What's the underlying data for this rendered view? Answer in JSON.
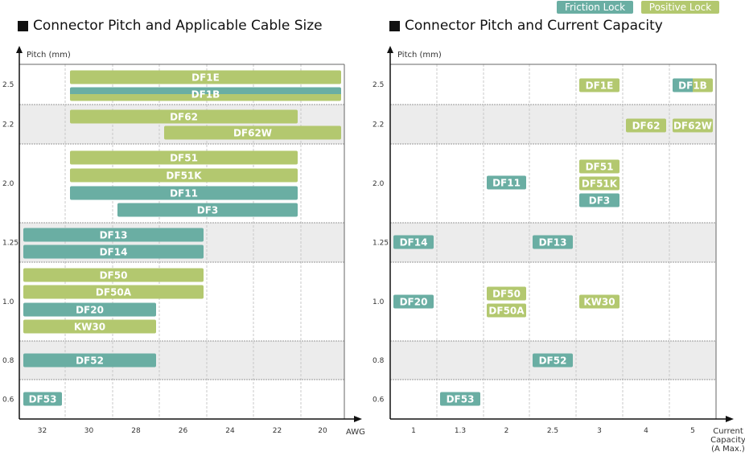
{
  "legend": [
    {
      "label": "Friction Lock",
      "color": "#6aaea3"
    },
    {
      "label": "Positive Lock",
      "color": "#b3c86f"
    }
  ],
  "chart_data": [
    {
      "type": "bar",
      "title": "Connector Pitch and Applicable Cable Size",
      "ylabel": "Pitch (mm)",
      "xlabel": "AWG",
      "x_ticks": [
        "32",
        "30",
        "28",
        "26",
        "24",
        "22",
        "20"
      ],
      "y_categories": [
        "2.5",
        "2.2",
        "2.0",
        "1.25",
        "1.0",
        "0.8",
        "0.6"
      ],
      "grid": true,
      "bars": [
        {
          "label": "DF1E",
          "pitch": "2.5",
          "awg_from": 30,
          "awg_to": 20,
          "lock": "positive"
        },
        {
          "label": "DF1B",
          "pitch": "2.5",
          "awg_from": 30,
          "awg_to": 20,
          "lock": "both"
        },
        {
          "label": "DF62",
          "pitch": "2.2",
          "awg_from": 30,
          "awg_to": 22,
          "lock": "positive"
        },
        {
          "label": "DF62W",
          "pitch": "2.2",
          "awg_from": 26,
          "awg_to": 20,
          "lock": "positive"
        },
        {
          "label": "DF51",
          "pitch": "2.0",
          "awg_from": 30,
          "awg_to": 22,
          "lock": "positive"
        },
        {
          "label": "DF51K",
          "pitch": "2.0",
          "awg_from": 30,
          "awg_to": 22,
          "lock": "positive"
        },
        {
          "label": "DF11",
          "pitch": "2.0",
          "awg_from": 30,
          "awg_to": 22,
          "lock": "friction"
        },
        {
          "label": "DF3",
          "pitch": "2.0",
          "awg_from": 28,
          "awg_to": 22,
          "lock": "friction"
        },
        {
          "label": "DF13",
          "pitch": "1.25",
          "awg_from": 32,
          "awg_to": 26,
          "lock": "friction"
        },
        {
          "label": "DF14",
          "pitch": "1.25",
          "awg_from": 32,
          "awg_to": 26,
          "lock": "friction"
        },
        {
          "label": "DF50",
          "pitch": "1.0",
          "awg_from": 32,
          "awg_to": 26,
          "lock": "positive"
        },
        {
          "label": "DF50A",
          "pitch": "1.0",
          "awg_from": 32,
          "awg_to": 26,
          "lock": "positive"
        },
        {
          "label": "DF20",
          "pitch": "1.0",
          "awg_from": 32,
          "awg_to": 28,
          "lock": "friction"
        },
        {
          "label": "KW30",
          "pitch": "1.0",
          "awg_from": 32,
          "awg_to": 28,
          "lock": "positive"
        },
        {
          "label": "DF52",
          "pitch": "0.8",
          "awg_from": 32,
          "awg_to": 28,
          "lock": "friction"
        },
        {
          "label": "DF53",
          "pitch": "0.6",
          "awg_from": 32,
          "awg_to": 32,
          "lock": "friction"
        }
      ]
    },
    {
      "type": "scatter",
      "title": "Connector Pitch and Current Capacity",
      "ylabel": "Pitch (mm)",
      "xlabel": "Current Capacity (A Max.)",
      "x_ticks": [
        "1",
        "1.3",
        "2",
        "2.5",
        "3",
        "4",
        "5"
      ],
      "y_categories": [
        "2.5",
        "2.2",
        "2.0",
        "1.25",
        "1.0",
        "0.8",
        "0.6"
      ],
      "grid": true,
      "points": [
        {
          "label": "DF1E",
          "pitch": "2.5",
          "current": "3",
          "lock": "positive"
        },
        {
          "label": "DF1B",
          "pitch": "2.5",
          "current": "5",
          "lock": "both"
        },
        {
          "label": "DF62",
          "pitch": "2.2",
          "current": "4",
          "lock": "positive"
        },
        {
          "label": "DF62W",
          "pitch": "2.2",
          "current": "5",
          "lock": "positive"
        },
        {
          "label": "DF51",
          "pitch": "2.0",
          "current": "3",
          "lock": "positive"
        },
        {
          "label": "DF51K",
          "pitch": "2.0",
          "current": "3",
          "lock": "positive"
        },
        {
          "label": "DF3",
          "pitch": "2.0",
          "current": "3",
          "lock": "friction"
        },
        {
          "label": "DF11",
          "pitch": "2.0",
          "current": "2",
          "lock": "friction"
        },
        {
          "label": "DF14",
          "pitch": "1.25",
          "current": "1",
          "lock": "friction"
        },
        {
          "label": "DF13",
          "pitch": "1.25",
          "current": "2.5",
          "lock": "friction"
        },
        {
          "label": "DF20",
          "pitch": "1.0",
          "current": "1",
          "lock": "friction"
        },
        {
          "label": "DF50",
          "pitch": "1.0",
          "current": "2",
          "lock": "positive"
        },
        {
          "label": "DF50A",
          "pitch": "1.0",
          "current": "2",
          "lock": "positive"
        },
        {
          "label": "KW30",
          "pitch": "1.0",
          "current": "3",
          "lock": "positive"
        },
        {
          "label": "DF52",
          "pitch": "0.8",
          "current": "2.5",
          "lock": "friction"
        },
        {
          "label": "DF53",
          "pitch": "0.6",
          "current": "1.3",
          "lock": "friction"
        }
      ]
    }
  ]
}
